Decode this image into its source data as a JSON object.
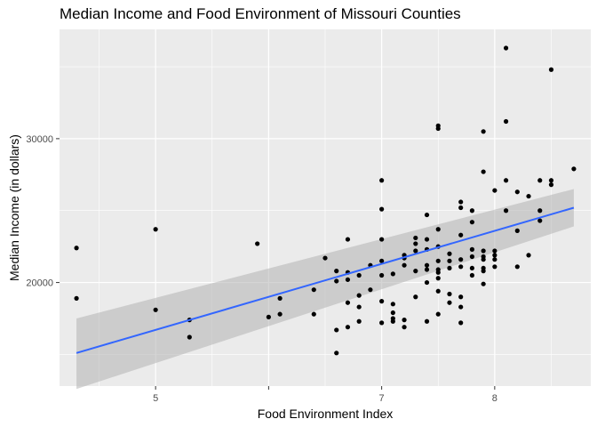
{
  "chart_data": {
    "type": "scatter",
    "title": "Median Income and Food Environment of Missouri Counties",
    "xlabel": "Food Environment Index",
    "ylabel": "Median Income (in dollars)",
    "xlim": [
      4.15,
      8.85
    ],
    "ylim": [
      12800,
      37600
    ],
    "x_ticks": [
      5,
      6,
      7,
      8
    ],
    "x_tick_labels": [
      "5",
      "",
      "7",
      "8"
    ],
    "y_ticks": [
      20000,
      30000
    ],
    "y_tick_labels": [
      "20000",
      "30000"
    ],
    "grid": true,
    "legend": "none",
    "colors": {
      "panel": "#ebebeb",
      "grid": "#ffffff",
      "points": "#000000",
      "fit_line": "#3366ff",
      "confidence_band": "#b3b3b3"
    },
    "series": [
      {
        "x": [
          4.3,
          4.3,
          5.0,
          5.0,
          5.3,
          5.3,
          5.9,
          6.0,
          6.1,
          6.1,
          6.4,
          6.4,
          6.5,
          6.6,
          6.6,
          6.6,
          6.6,
          6.7,
          6.7,
          6.7,
          6.7,
          6.7,
          6.8,
          6.8,
          6.8,
          6.8,
          6.9,
          6.9,
          7.0,
          7.0,
          7.0,
          7.0,
          7.0,
          7.0,
          7.0,
          7.1,
          7.1,
          7.1,
          7.1,
          7.1,
          7.2,
          7.2,
          7.2,
          7.2,
          7.2,
          7.3,
          7.3,
          7.3,
          7.3,
          7.3,
          7.4,
          7.4,
          7.4,
          7.4,
          7.4,
          7.4,
          7.4,
          7.5,
          7.5,
          7.5,
          7.5,
          7.5,
          7.5,
          7.5,
          7.5,
          7.5,
          7.5,
          7.6,
          7.6,
          7.6,
          7.6,
          7.6,
          7.7,
          7.7,
          7.7,
          7.7,
          7.7,
          7.7,
          7.7,
          7.7,
          7.8,
          7.8,
          7.8,
          7.8,
          7.8,
          7.8,
          7.9,
          7.9,
          7.9,
          7.9,
          7.9,
          7.9,
          7.9,
          7.9,
          8.0,
          8.0,
          8.0,
          8.0,
          8.0,
          8.1,
          8.1,
          8.1,
          8.1,
          8.2,
          8.2,
          8.2,
          8.3,
          8.3,
          8.4,
          8.4,
          8.4,
          8.5,
          8.5,
          8.5,
          8.7
        ],
        "y": [
          22400,
          18900,
          23700,
          18100,
          17400,
          16200,
          22700,
          17600,
          18900,
          17800,
          19500,
          17800,
          21700,
          20800,
          20100,
          16700,
          15100,
          23000,
          20700,
          20200,
          18600,
          16900,
          20500,
          19100,
          18300,
          17300,
          21200,
          19500,
          27100,
          25100,
          23000,
          21500,
          20500,
          18700,
          17200,
          20600,
          18500,
          17900,
          17500,
          17300,
          21900,
          21700,
          21200,
          17400,
          16900,
          23100,
          22700,
          22200,
          20800,
          19000,
          24700,
          23000,
          22300,
          21200,
          20900,
          20000,
          17300,
          30900,
          30700,
          23700,
          22500,
          21500,
          20900,
          20700,
          20300,
          19400,
          17800,
          22000,
          21500,
          21000,
          19200,
          18600,
          25600,
          25200,
          23300,
          21600,
          21100,
          19000,
          18300,
          17200,
          25000,
          24200,
          22300,
          21800,
          21000,
          20500,
          30500,
          27700,
          22200,
          21800,
          21600,
          21000,
          20800,
          19900,
          26400,
          22200,
          21900,
          21600,
          21100,
          36300,
          31200,
          27100,
          25000,
          26300,
          23600,
          21100,
          26000,
          21900,
          27100,
          25000,
          24300,
          34800,
          27100,
          26800,
          27900
        ]
      }
    ],
    "fit": {
      "method": "lm",
      "x": [
        4.3,
        8.7
      ],
      "y": [
        15100,
        25200
      ],
      "ci_lower": [
        12600,
        23900
      ],
      "ci_upper": [
        17500,
        26500
      ]
    }
  }
}
